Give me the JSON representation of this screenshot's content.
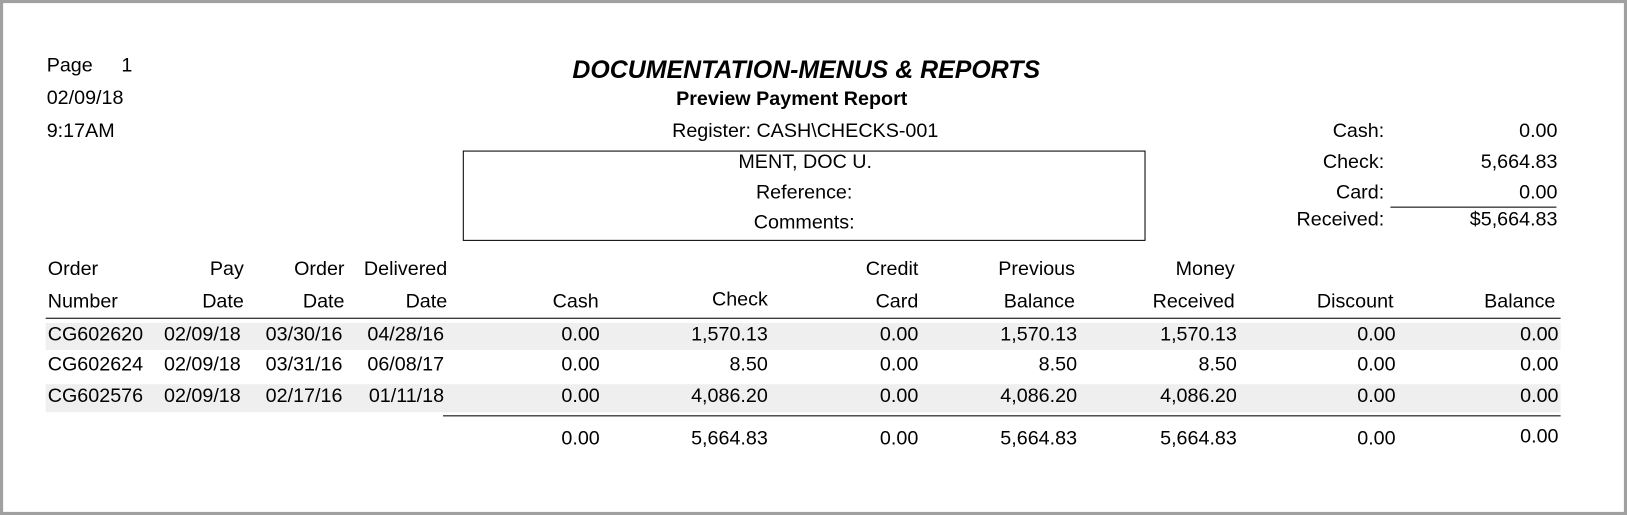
{
  "header": {
    "page_label": "Page",
    "page_number": "1",
    "date": "02/09/18",
    "time": "9:17AM",
    "title": "DOCUMENTATION-MENUS & REPORTS",
    "subtitle": "Preview Payment Report",
    "register": "Register: CASH\\CHECKS-001"
  },
  "customer_box": {
    "name": "MENT, DOC U.",
    "reference_label": "Reference:",
    "comments_label": "Comments:"
  },
  "summary": {
    "rows": [
      [
        "Cash:",
        "0.00"
      ],
      [
        "Check:",
        "5,664.83"
      ],
      [
        "Card:",
        "0.00"
      ],
      [
        "Received:",
        "$5,664.83"
      ]
    ]
  },
  "table": {
    "columns": [
      {
        "lines": [
          "Order",
          "Number"
        ]
      },
      {
        "lines": [
          "Pay",
          "Date"
        ]
      },
      {
        "lines": [
          "Order",
          "Date"
        ]
      },
      {
        "lines": [
          "Delivered",
          "Date"
        ]
      },
      {
        "lines": [
          "Cash"
        ]
      },
      {
        "lines": [
          "Check"
        ]
      },
      {
        "lines": [
          "Credit",
          "Card"
        ]
      },
      {
        "lines": [
          "Previous",
          "Balance"
        ]
      },
      {
        "lines": [
          "Money",
          "Received"
        ]
      },
      {
        "lines": [
          "Discount"
        ]
      },
      {
        "lines": [
          "Balance"
        ]
      }
    ],
    "rows": [
      [
        "CG602620",
        "02/09/18",
        "03/30/16",
        "04/28/16",
        "0.00",
        "1,570.13",
        "0.00",
        "1,570.13",
        "1,570.13",
        "0.00",
        "0.00"
      ],
      [
        "CG602624",
        "02/09/18",
        "03/31/16",
        "06/08/17",
        "0.00",
        "8.50",
        "0.00",
        "8.50",
        "8.50",
        "0.00",
        "0.00"
      ],
      [
        "CG602576",
        "02/09/18",
        "02/17/16",
        "01/11/18",
        "0.00",
        "4,086.20",
        "0.00",
        "4,086.20",
        "4,086.20",
        "0.00",
        "0.00"
      ]
    ],
    "totals": [
      "0.00",
      "5,664.83",
      "0.00",
      "5,664.83",
      "5,664.83",
      "0.00",
      "0.00"
    ]
  }
}
